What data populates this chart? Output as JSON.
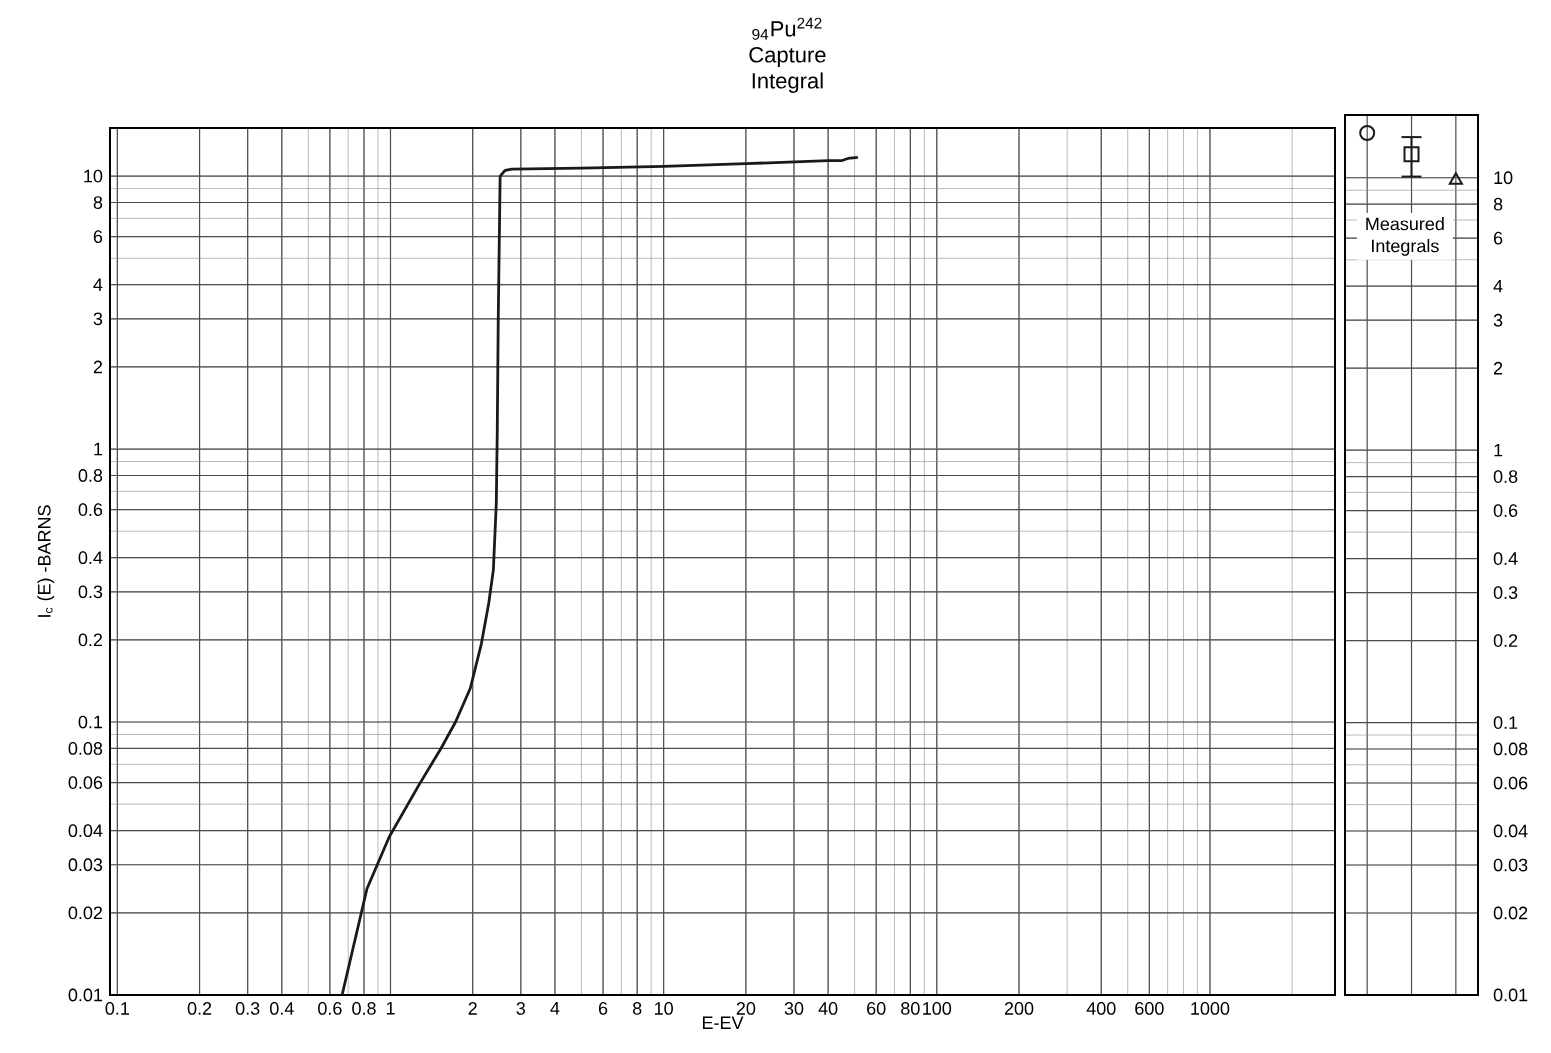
{
  "chart_data": [
    {
      "type": "line",
      "title": "$_{94}$Pu$^{242}$",
      "subtitle": "Capture Integral",
      "xlabel": "E-EV",
      "ylabel": "I$_{c}$ (E) -BARNS",
      "log": "xy",
      "grid": true,
      "xlim": [
        0.094,
        2870
      ],
      "ylim": [
        0.01,
        15
      ],
      "xticks": [
        0.1,
        0.2,
        0.3,
        0.4,
        0.6,
        0.8,
        1,
        2,
        3,
        4,
        6,
        8,
        10,
        20,
        30,
        40,
        60,
        80,
        100,
        200,
        400,
        600,
        1000
      ],
      "yticks": [
        0.01,
        0.02,
        0.03,
        0.04,
        0.06,
        0.08,
        0.1,
        0.2,
        0.3,
        0.4,
        0.6,
        0.8,
        1,
        2,
        3,
        4,
        6,
        8,
        10
      ],
      "series": [
        {
          "color": "#1a1a1a",
          "x": [
            0.665,
            0.82,
            0.99,
            1.27,
            1.53,
            1.73,
            1.96,
            2.15,
            2.29,
            2.38,
            2.44,
            2.46,
            2.48,
            2.52,
            2.63,
            2.78,
            5,
            10,
            20,
            40,
            45,
            47.3,
            51.4
          ],
          "values": [
            0.01,
            0.0245,
            0.038,
            0.0587,
            0.08,
            0.1,
            0.133,
            0.193,
            0.273,
            0.361,
            0.635,
            1.18,
            3,
            10,
            10.5,
            10.6,
            10.7,
            10.85,
            11.1,
            11.4,
            11.4,
            11.6,
            11.7
          ]
        }
      ]
    },
    {
      "type": "scatter",
      "log": "y",
      "grid": true,
      "tick_labels": "y",
      "annotations": [
        "Measured Integrals"
      ],
      "categories": [
        null,
        null,
        null
      ],
      "ylim": [
        0.01,
        17
      ],
      "yticks": [
        0.01,
        0.02,
        0.03,
        0.04,
        0.06,
        0.08,
        0.1,
        0.2,
        0.3,
        0.4,
        0.6,
        0.8,
        1,
        2,
        3,
        4,
        6,
        8,
        10
      ],
      "series": [
        {
          "color": "#1a1a1a",
          "marker": "circle",
          "values": [
            14.6,
            null,
            null
          ]
        },
        {
          "color": "#1a1a1a",
          "marker": "square",
          "values": [
            null,
            12.2,
            null
          ],
          "errors": [
            null,
            [
              10.1,
              14.1
            ],
            null
          ]
        },
        {
          "color": "#1a1a1a",
          "marker": "triangle",
          "values": [
            null,
            null,
            9.8
          ]
        }
      ]
    }
  ]
}
